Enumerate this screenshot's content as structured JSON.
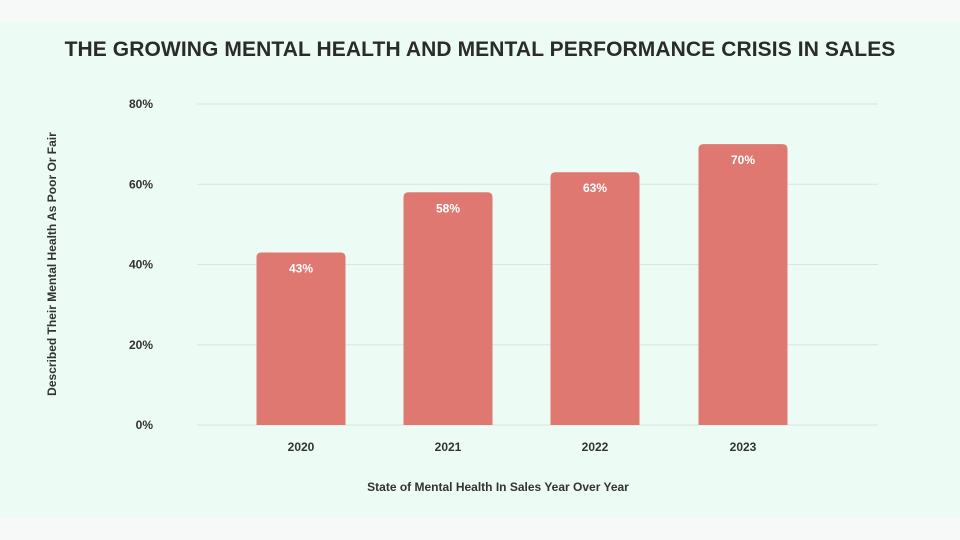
{
  "chart_data": {
    "type": "bar",
    "title": "THE GROWING MENTAL HEALTH AND MENTAL PERFORMANCE CRISIS IN SALES",
    "xlabel": "State of Mental Health In Sales Year Over Year",
    "ylabel": "Described Their Mental Health As Poor Or Fair",
    "categories": [
      "2020",
      "2021",
      "2022",
      "2023"
    ],
    "values": [
      43,
      58,
      63,
      70
    ],
    "data_labels": [
      "43%",
      "58%",
      "63%",
      "70%"
    ],
    "ylim": [
      0,
      80
    ],
    "yticks": [
      0,
      20,
      40,
      60,
      80
    ],
    "ytick_labels": [
      "0%",
      "20%",
      "40%",
      "60%",
      "80%"
    ],
    "grid": true,
    "legend": "none",
    "colors": {
      "bar": "#e07872",
      "grid": "#d9e6e0",
      "background": "#ecfbf3",
      "text": "#2b2b2b"
    }
  }
}
